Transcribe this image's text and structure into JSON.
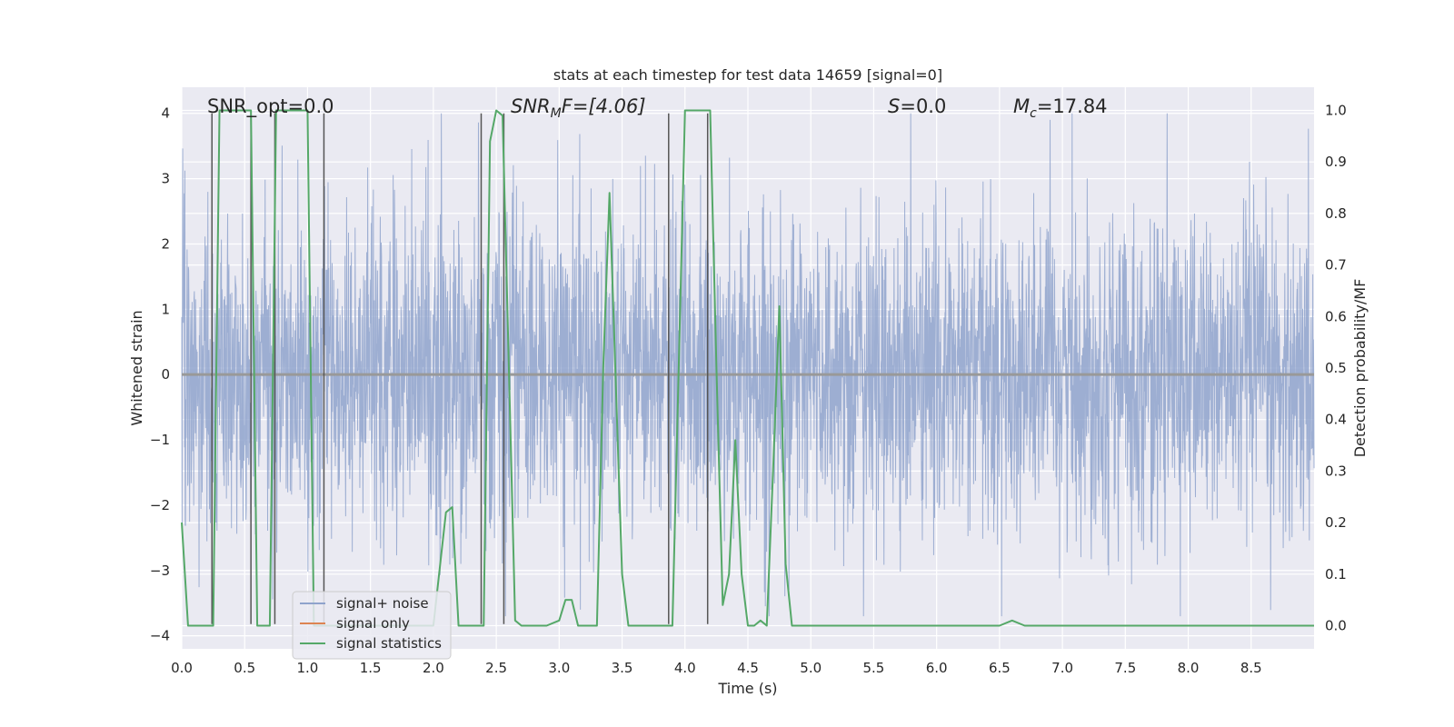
{
  "chart_data": {
    "type": "line",
    "title": "stats at each timestep for test data 14659 [signal=0]",
    "xlabel": "Time (s)",
    "ylabel_left": "Whitened strain",
    "ylabel_right": "Detection probability/MF",
    "xlim": [
      0.0,
      9.0
    ],
    "ylim_left": [
      -4.2,
      4.4
    ],
    "ylim_right": [
      -0.045,
      1.045
    ],
    "x_ticks": [
      "0.0",
      "0.5",
      "1.0",
      "1.5",
      "2.0",
      "2.5",
      "3.0",
      "3.5",
      "4.0",
      "4.5",
      "5.0",
      "5.5",
      "6.0",
      "6.5",
      "7.0",
      "7.5",
      "8.0",
      "8.5"
    ],
    "y_left_ticks": [
      "4",
      "3",
      "2",
      "1",
      "0",
      "−1",
      "−2",
      "−3",
      "−4"
    ],
    "y_right_ticks": [
      "1.0",
      "0.9",
      "0.8",
      "0.7",
      "0.6",
      "0.5",
      "0.4",
      "0.3",
      "0.2",
      "0.1",
      "0.0"
    ],
    "grid": true,
    "legend_position": "bottom-left",
    "annotations": {
      "snr_opt": "SNR_opt=0.0",
      "snr_mf_base": "SNR",
      "snr_mf_sub": "M",
      "snr_mf_rest": "F=[4.06]",
      "s_base": "S",
      "s_rest": "=0.0",
      "mc_base": "M",
      "mc_sub": "c",
      "mc_rest": "=17.84"
    },
    "series": [
      {
        "name": "signal+ noise",
        "color": "#8fa3cc",
        "kind": "noise-strain",
        "amplitude_envelope": [
          -3.7,
          4.0
        ]
      },
      {
        "name": "signal only",
        "color": "#dd8452",
        "kind": "flat",
        "values": [
          0.0
        ]
      },
      {
        "name": "signal statistics",
        "color": "#55a868",
        "x": [
          0.0,
          0.05,
          0.1,
          0.15,
          0.2,
          0.25,
          0.3,
          0.35,
          0.4,
          0.45,
          0.5,
          0.55,
          0.6,
          0.65,
          0.7,
          0.75,
          0.8,
          0.85,
          0.9,
          0.95,
          1.0,
          1.05,
          1.1,
          1.15,
          1.2,
          1.25,
          1.3,
          1.4,
          1.5,
          1.6,
          1.7,
          1.8,
          1.9,
          2.0,
          2.1,
          2.15,
          2.2,
          2.25,
          2.3,
          2.35,
          2.4,
          2.45,
          2.5,
          2.55,
          2.6,
          2.65,
          2.7,
          2.8,
          2.9,
          3.0,
          3.05,
          3.1,
          3.15,
          3.2,
          3.3,
          3.35,
          3.4,
          3.5,
          3.55,
          3.6,
          3.7,
          3.8,
          3.9,
          4.0,
          4.1,
          4.15,
          4.2,
          4.25,
          4.3,
          4.35,
          4.4,
          4.45,
          4.5,
          4.55,
          4.6,
          4.65,
          4.7,
          4.75,
          4.8,
          4.85,
          4.9,
          4.95,
          5.0,
          5.5,
          6.0,
          6.5,
          6.6,
          6.7,
          7.0,
          7.5,
          8.0,
          8.4,
          8.5,
          9.0
        ],
        "values": [
          0.2,
          0.0,
          0.0,
          0.0,
          0.0,
          0.0,
          1.0,
          1.0,
          1.0,
          1.0,
          1.0,
          1.0,
          0.0,
          0.0,
          0.0,
          1.0,
          1.0,
          1.0,
          1.0,
          1.0,
          1.0,
          0.0,
          0.0,
          0.0,
          0.0,
          0.0,
          0.0,
          0.0,
          0.0,
          0.0,
          0.0,
          0.0,
          0.0,
          0.0,
          0.22,
          0.23,
          0.0,
          0.0,
          0.0,
          0.0,
          0.0,
          0.94,
          1.0,
          0.99,
          0.5,
          0.01,
          0.0,
          0.0,
          0.0,
          0.01,
          0.05,
          0.05,
          0.0,
          0.0,
          0.0,
          0.5,
          0.84,
          0.1,
          0.0,
          0.0,
          0.0,
          0.0,
          0.0,
          1.0,
          1.0,
          1.0,
          1.0,
          0.5,
          0.04,
          0.1,
          0.36,
          0.1,
          0.0,
          0.0,
          0.01,
          0.0,
          0.3,
          0.62,
          0.12,
          0.0,
          0.0,
          0.0,
          0.0,
          0.0,
          0.0,
          0.0,
          0.01,
          0.0,
          0.0,
          0.0,
          0.0,
          0.0,
          0.0,
          0.0
        ]
      }
    ],
    "vertical_markers": {
      "color": "#555555",
      "positions": [
        0.24,
        0.55,
        0.74,
        1.13,
        2.38,
        2.56,
        3.87,
        4.18
      ]
    }
  }
}
